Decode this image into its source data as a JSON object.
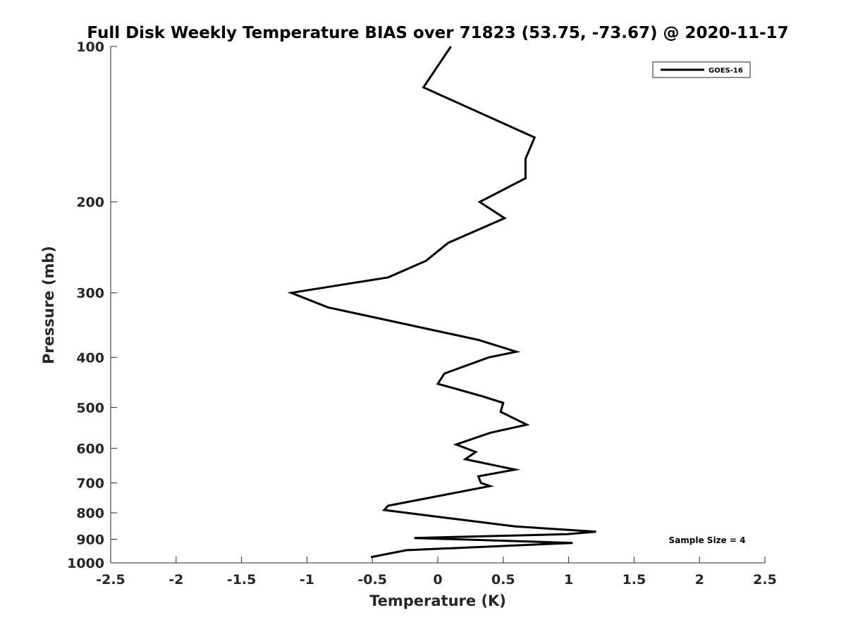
{
  "chart_data": {
    "type": "line",
    "title": "Full Disk Weekly Temperature BIAS over 71823 (53.75, -73.67) @ 2020-11-17",
    "xlabel": "Temperature (K)",
    "ylabel": "Pressure (mb)",
    "xlim": [
      -2.5,
      2.5
    ],
    "ylim": [
      100,
      1000
    ],
    "y_scale": "log",
    "y_reversed": true,
    "grid": false,
    "legend_position": "top-right",
    "x_ticks": [
      -2.5,
      -2,
      -1.5,
      -1,
      -0.5,
      0,
      0.5,
      1,
      1.5,
      2,
      2.5
    ],
    "x_tick_labels": [
      "-2.5",
      "-2",
      "-1.5",
      "-1",
      "-0.5",
      "0",
      "0.5",
      "1",
      "1.5",
      "2",
      "2.5"
    ],
    "y_ticks": [
      100,
      200,
      300,
      400,
      500,
      600,
      700,
      800,
      900,
      1000
    ],
    "y_tick_labels": [
      "100",
      "200",
      "300",
      "400",
      "500",
      "600",
      "700",
      "800",
      "900",
      "1000"
    ],
    "series": [
      {
        "name": "GOES-16",
        "color": "#000000",
        "points": [
          [
            0.1,
            100
          ],
          [
            -0.11,
            120
          ],
          [
            0.74,
            150
          ],
          [
            0.67,
            165
          ],
          [
            0.67,
            180
          ],
          [
            0.32,
            200
          ],
          [
            0.51,
            215
          ],
          [
            0.08,
            240
          ],
          [
            -0.09,
            260
          ],
          [
            -0.38,
            280
          ],
          [
            -1.12,
            300
          ],
          [
            -0.84,
            320
          ],
          [
            0.31,
            370
          ],
          [
            0.6,
            390
          ],
          [
            0.39,
            400
          ],
          [
            0.05,
            430
          ],
          [
            0.0,
            450
          ],
          [
            0.33,
            475
          ],
          [
            0.5,
            490
          ],
          [
            0.48,
            510
          ],
          [
            0.68,
            540
          ],
          [
            0.4,
            560
          ],
          [
            0.14,
            590
          ],
          [
            0.29,
            610
          ],
          [
            0.21,
            630
          ],
          [
            0.59,
            660
          ],
          [
            0.31,
            680
          ],
          [
            0.33,
            700
          ],
          [
            0.4,
            710
          ],
          [
            -0.38,
            775
          ],
          [
            -0.41,
            790
          ],
          [
            0.18,
            825
          ],
          [
            0.59,
            850
          ],
          [
            1.21,
            870
          ],
          [
            0.99,
            880
          ],
          [
            -0.18,
            895
          ],
          [
            1.03,
            915
          ],
          [
            -0.24,
            945
          ],
          [
            -0.51,
            975
          ]
        ]
      }
    ],
    "annotations": [
      {
        "text": "Sample Size = 4"
      }
    ]
  }
}
